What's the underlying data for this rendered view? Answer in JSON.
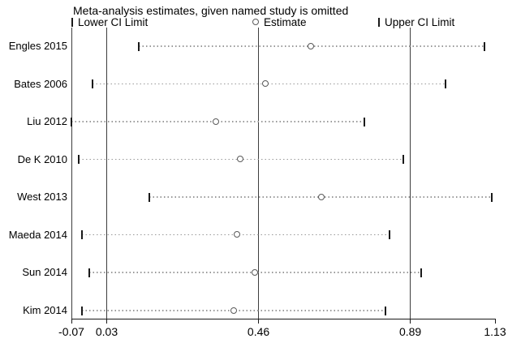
{
  "chart_data": {
    "type": "scatter",
    "variant": "leave-one-out-meta-analysis-forest",
    "title": "Meta-analysis estimates, given named study is omitted",
    "legend_position": "top",
    "legend_items": [
      {
        "glyph": "ci-tick",
        "label": "Lower CI Limit"
      },
      {
        "glyph": "circle",
        "label": "Estimate"
      },
      {
        "glyph": "ci-tick",
        "label": "Upper CI Limit"
      }
    ],
    "studies": [
      "Engles 2015",
      "Bates 2006",
      "Liu 2012",
      "De K 2010",
      "West 2013",
      "Maeda 2014",
      "Sun 2014",
      "Kim 2014"
    ],
    "series": [
      {
        "name": "Lower CI Limit",
        "values": [
          0.12,
          -0.01,
          -0.07,
          -0.05,
          0.15,
          -0.04,
          -0.02,
          -0.04
        ]
      },
      {
        "name": "Estimate",
        "values": [
          0.61,
          0.48,
          0.34,
          0.41,
          0.64,
          0.4,
          0.45,
          0.39
        ]
      },
      {
        "name": "Upper CI Limit",
        "values": [
          1.1,
          0.99,
          0.76,
          0.87,
          1.12,
          0.83,
          0.92,
          0.82
        ]
      }
    ],
    "xlim": [
      -0.07,
      1.13
    ],
    "x_ticks": [
      -0.07,
      0.03,
      0.46,
      0.89,
      1.13
    ],
    "x_tick_labels": [
      "-0.07",
      "0.03",
      "0.46",
      "0.89",
      "1.13"
    ],
    "gridlines_x": [
      0.03,
      0.46,
      0.89
    ],
    "grid": "vertical-lines-only",
    "background": "#ffffff"
  },
  "colors": {
    "text": "#000000",
    "frame_line": "#3d3d3d",
    "gridline": "#3d3d3d",
    "axis_line": "#1a1a1a",
    "ci_tick": "#1a1a1a",
    "ci_dotted_line": "#999999",
    "marker_stroke": "#5a5a5a",
    "marker_fill": "#ffffff"
  }
}
